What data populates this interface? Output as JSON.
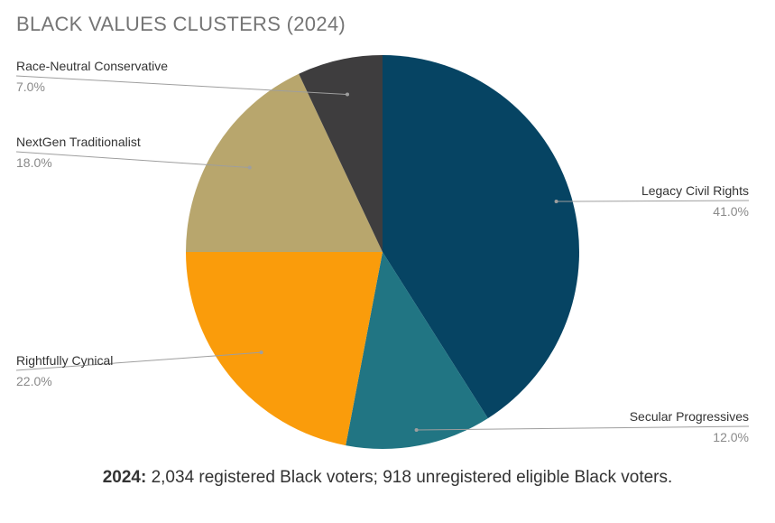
{
  "chart_data": {
    "type": "pie",
    "title": "BLACK VALUES CLUSTERS (2024)",
    "slices": [
      {
        "label": "Legacy Civil Rights",
        "value": 41.0,
        "display": "41.0%",
        "color": "#064463"
      },
      {
        "label": "Secular Progressives",
        "value": 12.0,
        "display": "12.0%",
        "color": "#217583"
      },
      {
        "label": "Rightfully Cynical",
        "value": 22.0,
        "display": "22.0%",
        "color": "#fa9c0b"
      },
      {
        "label": "NextGen Traditionalist",
        "value": 18.0,
        "display": "18.0%",
        "color": "#b8a66d"
      },
      {
        "label": "Race-Neutral Conservative",
        "value": 7.0,
        "display": "7.0%",
        "color": "#3e3d3e"
      }
    ]
  },
  "footnote": {
    "bold": "2024:",
    "text": " 2,034 registered Black voters; 918 unregistered eligible Black voters."
  }
}
